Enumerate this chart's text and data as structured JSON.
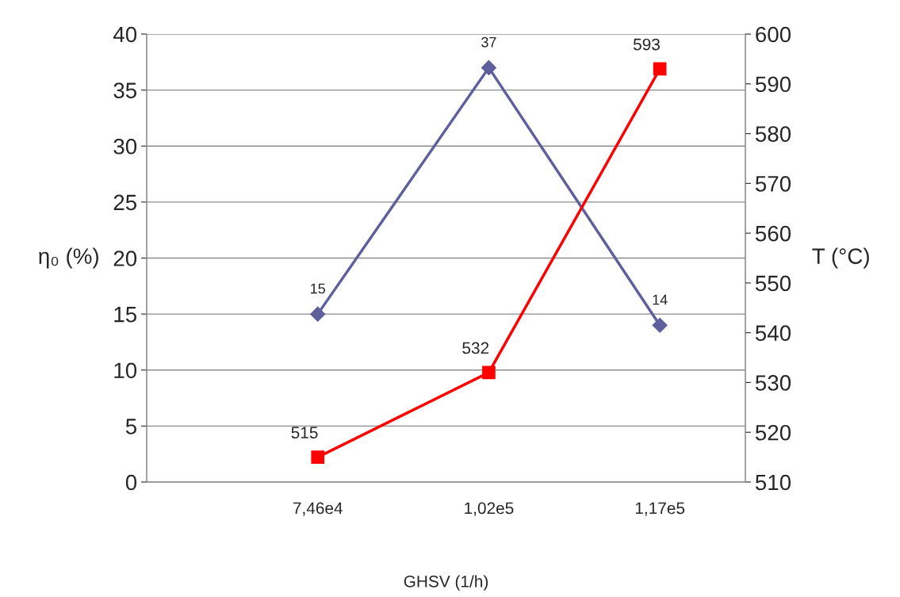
{
  "chart_data": {
    "type": "line",
    "categories": [
      "7,46e4",
      "1,02e5",
      "1,17e5"
    ],
    "xlabel": "GHSV (1/h)",
    "ylabel": "η₀ (%)",
    "y2label": "T (°C)",
    "series": [
      {
        "color": "#5f5f9c",
        "values": [
          15,
          37,
          14
        ],
        "marker": "diamond"
      },
      {
        "color": "#ff0000",
        "values": [
          515,
          532,
          593
        ],
        "marker": "square",
        "axis": "y2"
      }
    ],
    "ylim": [
      0,
      40
    ],
    "yticks": [
      0,
      5,
      10,
      15,
      20,
      25,
      30,
      35,
      40
    ],
    "y2lim": [
      510,
      600
    ],
    "y2ticks": [
      510,
      520,
      530,
      540,
      550,
      560,
      570,
      580,
      590,
      600
    ],
    "grid": "y",
    "data_labels": true,
    "line_style": "solid"
  }
}
